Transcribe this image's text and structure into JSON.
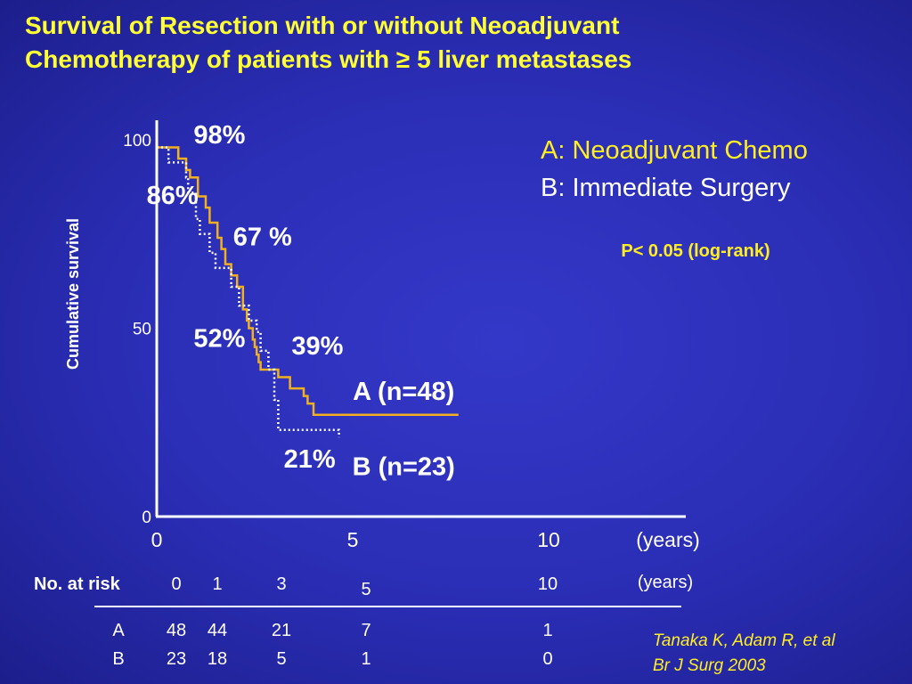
{
  "title_lines": [
    "Survival of Resection with or without Neoadjuvant",
    "Chemotherapy of patients with ≥ 5 liver metastases"
  ],
  "citation_lines": [
    "Tanaka K, Adam R, et al",
    "Br J Surg 2003"
  ],
  "colors": {
    "series_a": "#f0b020",
    "series_b": "#ffffff",
    "title": "#ffff33",
    "legend": "#ffee22"
  },
  "chart_data": {
    "type": "line",
    "step": true,
    "ylabel": "Cumulative survival",
    "xlabel": "(years)",
    "xlim": [
      0,
      10
    ],
    "ylim": [
      0,
      100
    ],
    "x_ticks": [
      0,
      5,
      10
    ],
    "y_ticks": [
      0,
      50,
      100
    ],
    "grid": false,
    "legend": {
      "position": "top-right",
      "lines": [
        "A: Neoadjuvant Chemo",
        "B:  Immediate Surgery"
      ]
    },
    "pvalue": "P< 0.05 (log-rank)",
    "series": [
      {
        "name": "A (n=48)",
        "key": "A",
        "style": "solid",
        "x": [
          0,
          0.55,
          0.75,
          0.85,
          1.05,
          1.25,
          1.35,
          1.55,
          1.65,
          1.75,
          1.9,
          2.05,
          2.2,
          2.3,
          2.35,
          2.45,
          2.5,
          2.55,
          2.6,
          2.65,
          3.1,
          3.4,
          3.75,
          3.85,
          4.0,
          4.8,
          7.7
        ],
        "y": [
          98,
          95,
          92,
          90,
          85,
          82,
          78,
          74,
          71,
          67,
          64,
          61,
          55,
          52,
          50,
          47,
          45,
          43,
          41,
          39,
          37,
          34,
          32,
          30,
          27,
          27,
          27
        ]
      },
      {
        "name": "B (n=23)",
        "key": "B",
        "style": "dotted",
        "x": [
          0,
          0.3,
          0.75,
          0.8,
          1.0,
          1.1,
          1.35,
          1.5,
          1.9,
          2.1,
          2.35,
          2.55,
          2.65,
          2.85,
          3.0,
          3.1,
          4.65
        ],
        "y": [
          98,
          94,
          90,
          86,
          79,
          75,
          70,
          66,
          61,
          56,
          52,
          49,
          44,
          39,
          31,
          23,
          21
        ]
      }
    ],
    "annotations": [
      {
        "text": "98%",
        "x": 1.6,
        "y": 99
      },
      {
        "text": "86%",
        "x": 0.4,
        "y": 83
      },
      {
        "text": "67 %",
        "x": 2.7,
        "y": 72
      },
      {
        "text": "52%",
        "x": 1.6,
        "y": 45
      },
      {
        "text": "39%",
        "x": 4.1,
        "y": 43
      },
      {
        "text": "21%",
        "x": 3.9,
        "y": 13
      }
    ],
    "series_labels": [
      {
        "text": "A (n=48)",
        "x": 6.3,
        "y": 31
      },
      {
        "text": "B (n=23)",
        "x": 6.3,
        "y": 11
      }
    ],
    "risk_table": {
      "label": "No. at risk",
      "unit": "(years)",
      "timepoints": [
        0,
        1,
        3,
        5,
        10
      ],
      "rows": [
        {
          "label": "A",
          "values": [
            48,
            44,
            21,
            7,
            1
          ]
        },
        {
          "label": "B",
          "values": [
            23,
            18,
            5,
            1,
            0
          ]
        }
      ]
    }
  }
}
